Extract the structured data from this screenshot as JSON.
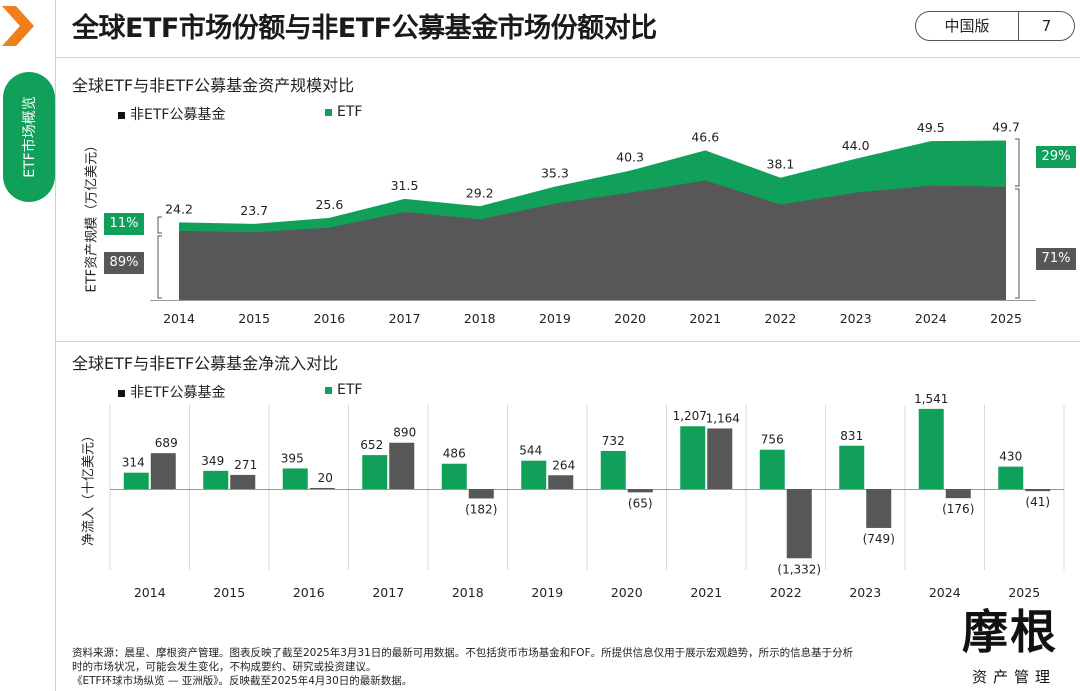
{
  "header": {
    "title": "全球ETF市场份额与非ETF公募基金市场份额对比",
    "edition": "中国版",
    "page_number": "7"
  },
  "sidebar": {
    "tab_label": "ETF市场概览"
  },
  "colors": {
    "etf": "#10a05a",
    "non_etf": "#575757",
    "grid": "#d9d9d9"
  },
  "chart_data": [
    {
      "type": "area",
      "title": "全球ETF与非ETF公募基金资产规模对比",
      "ylabel": "ETF资产规模（万亿美元）",
      "legend": {
        "non_etf": "非ETF公募基金",
        "etf": "ETF"
      },
      "categories": [
        "2014",
        "2015",
        "2016",
        "2017",
        "2018",
        "2019",
        "2020",
        "2021",
        "2022",
        "2023",
        "2024",
        "2025"
      ],
      "totals": [
        24.2,
        23.7,
        25.6,
        31.5,
        29.2,
        35.3,
        40.3,
        46.6,
        38.1,
        44.0,
        49.5,
        49.7
      ],
      "total_labels": [
        "24.2",
        "23.7",
        "25.6",
        "31.5",
        "29.2",
        "35.3",
        "40.3",
        "46.6",
        "38.1",
        "44.0",
        "49.5",
        "49.7"
      ],
      "etf_share": [
        0.11,
        0.11,
        0.12,
        0.13,
        0.14,
        0.15,
        0.17,
        0.2,
        0.22,
        0.24,
        0.28,
        0.29
      ],
      "start_shares": {
        "etf": "11%",
        "non_etf": "89%"
      },
      "end_shares": {
        "etf": "29%",
        "non_etf": "71%"
      }
    },
    {
      "type": "bar",
      "title": "全球ETF与非ETF公募基金净流入对比",
      "ylabel": "净流入（十亿美元）",
      "legend": {
        "non_etf": "非ETF公募基金",
        "etf": "ETF"
      },
      "categories": [
        "2014",
        "2015",
        "2016",
        "2017",
        "2018",
        "2019",
        "2020",
        "2021",
        "2022",
        "2023",
        "2024",
        "2025"
      ],
      "series": [
        {
          "name": "ETF",
          "values": [
            314,
            349,
            395,
            652,
            486,
            544,
            732,
            1207,
            756,
            831,
            1541,
            430
          ],
          "labels": [
            "314",
            "349",
            "395",
            "652",
            "486",
            "544",
            "732",
            "1,207",
            "756",
            "831",
            "1,541",
            "430"
          ]
        },
        {
          "name": "非ETF公募基金",
          "values": [
            689,
            271,
            20,
            890,
            -182,
            264,
            -65,
            1164,
            -1332,
            -749,
            -176,
            -41
          ],
          "labels": [
            "689",
            "271",
            "20",
            "890",
            "(182)",
            "264",
            "(65)",
            "1,164",
            "(1,332)",
            "(749)",
            "(176)",
            "(41)"
          ]
        }
      ]
    }
  ],
  "footnote": {
    "line1": "资料来源：晨星、摩根资产管理。图表反映了截至2025年3月31日的最新可用数据。不包括货币市场基金和FOF。所提供信息仅用于展示宏观趋势，所示的信息基于分析",
    "line2": "时的市场状况，可能会发生变化，不构成要约、研究或投资建议。",
    "line3": "《ETF环球市场纵览 — 亚洲版》。反映截至2025年4月30日的最新数据。"
  },
  "brand": {
    "name": "摩根",
    "subtitle": "资产管理"
  }
}
